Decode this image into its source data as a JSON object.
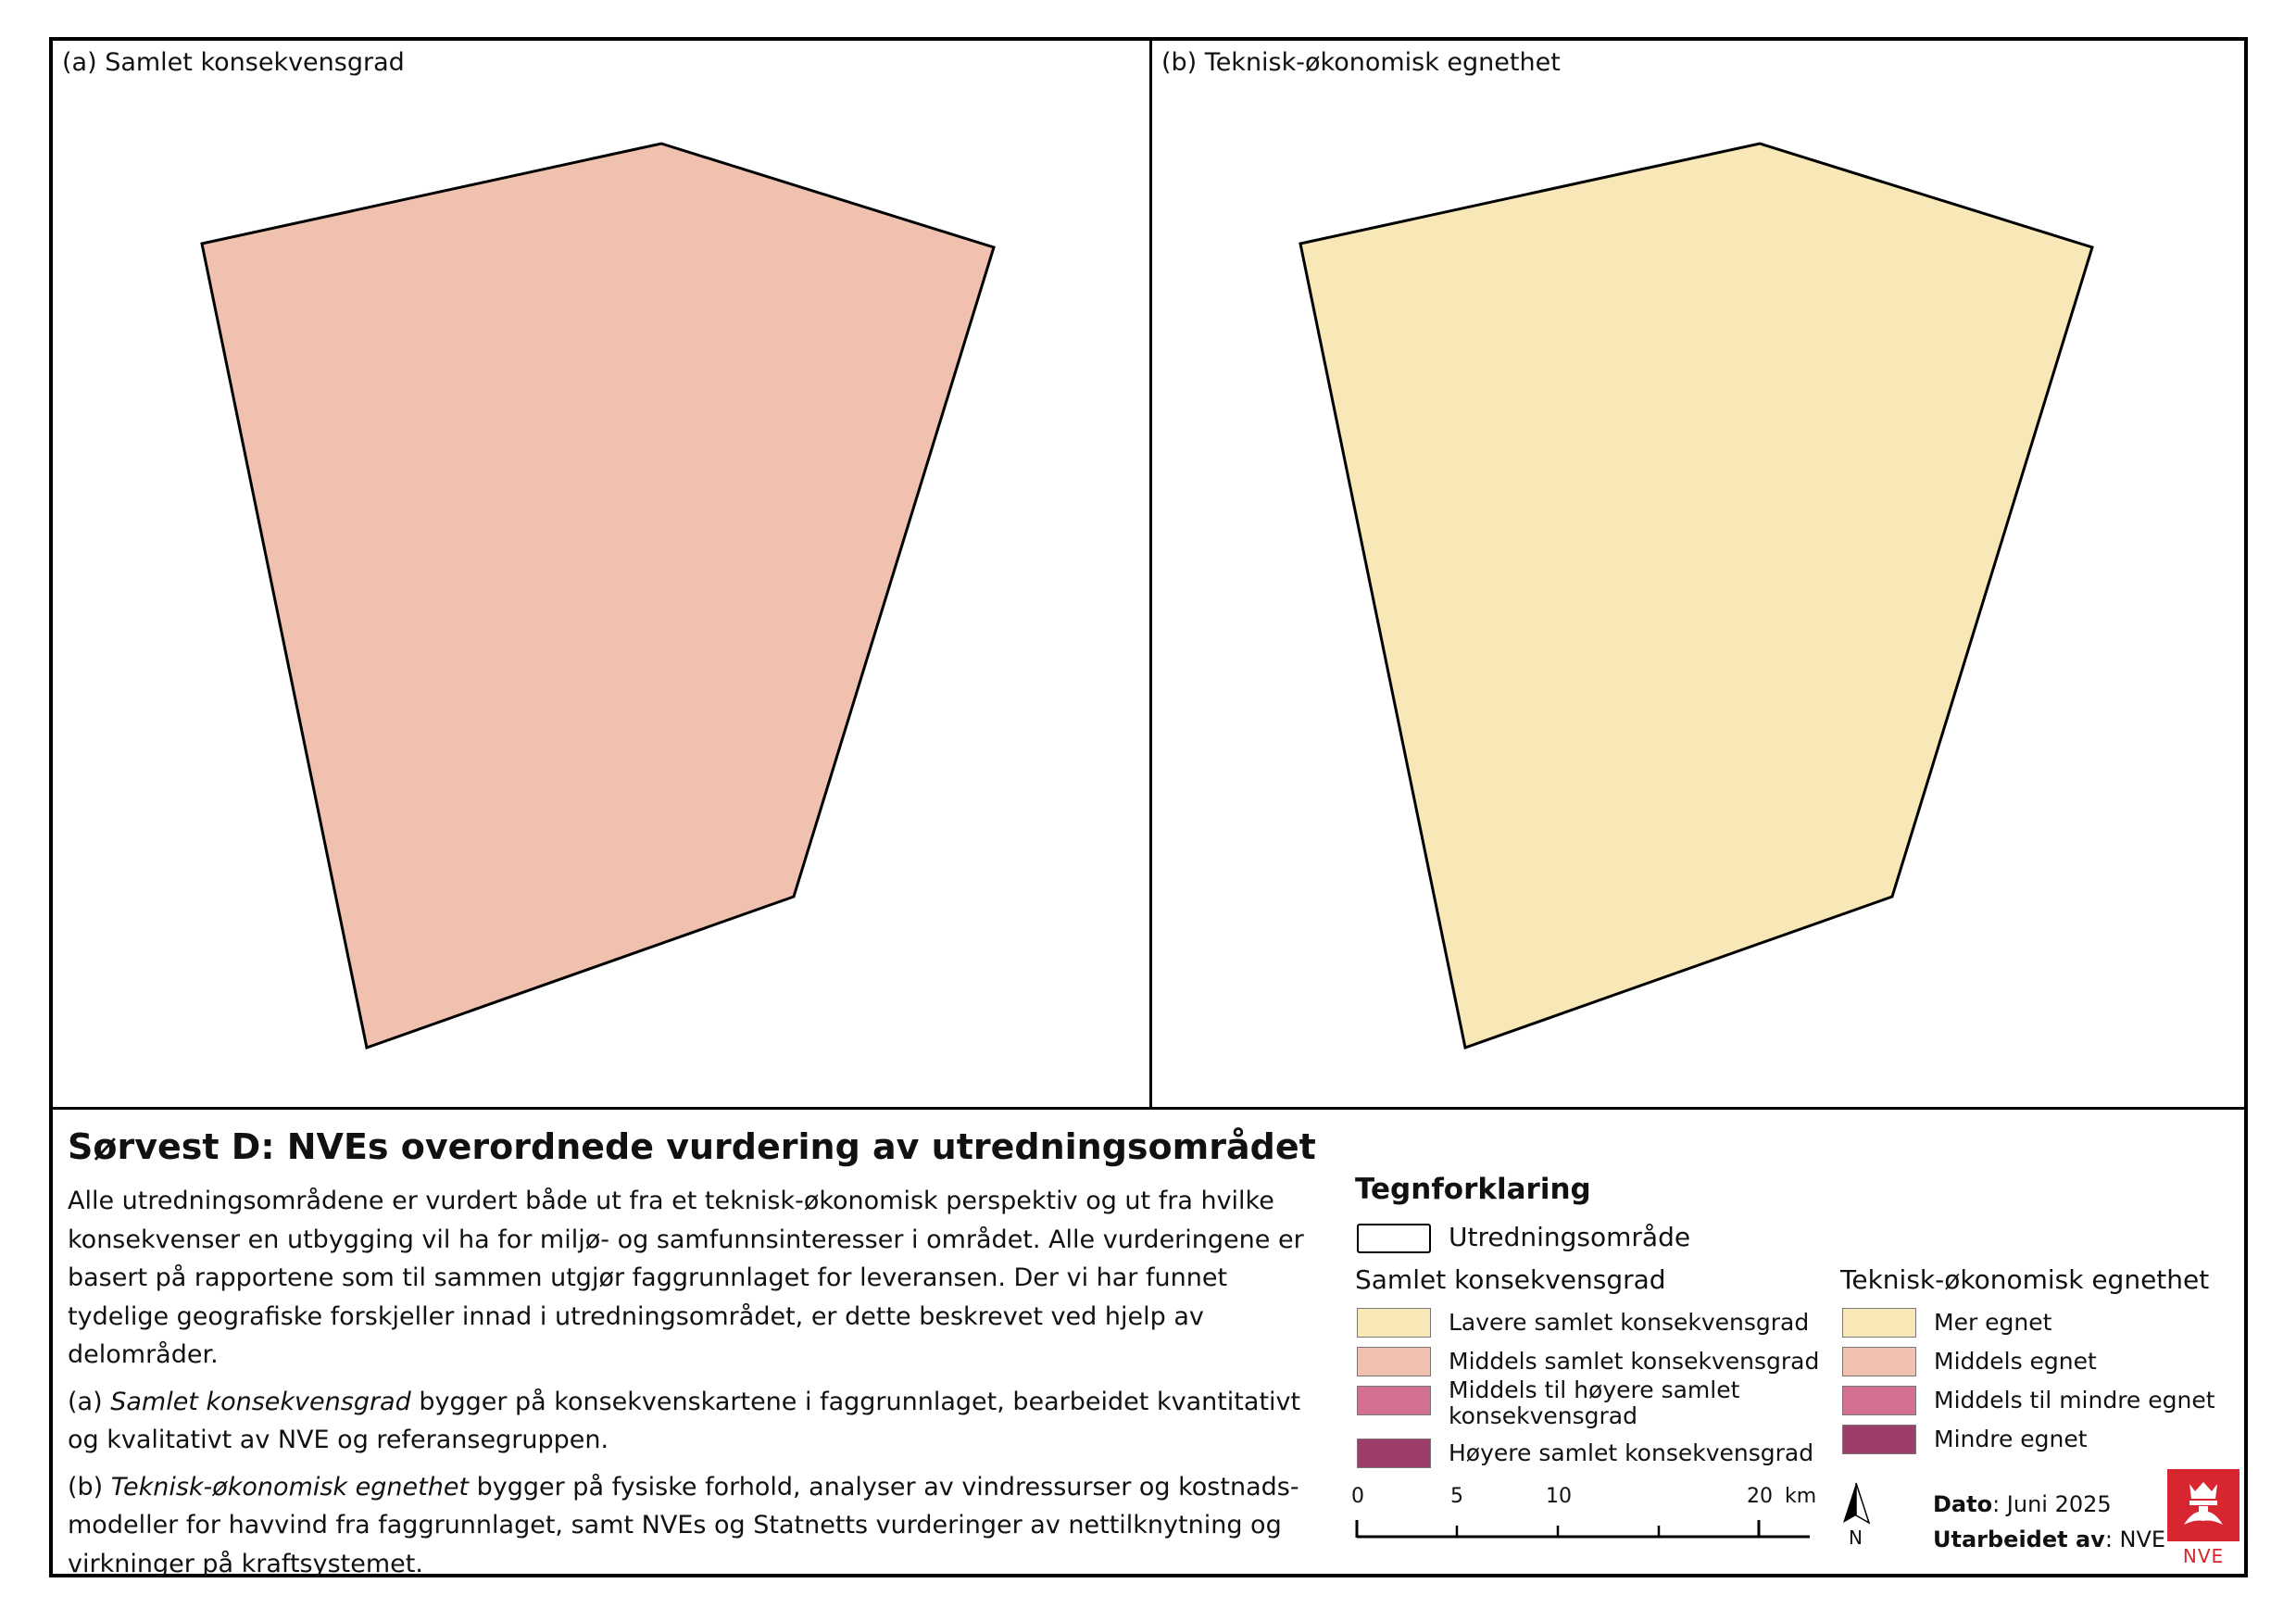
{
  "panel_a": {
    "label": "(a) Samlet konsekvensgrad",
    "fill": "#efc1ae"
  },
  "panel_b": {
    "label": "(b) Teknisk-økonomisk egnethet",
    "fill": "#f8e7b7"
  },
  "title": "Sørvest D: NVEs overordnede vurdering av utredningsområdet",
  "description": {
    "para1": "Alle utredningsområdene er vurdert både ut fra et teknisk-økonomisk perspektiv og ut fra hvilke konsekvenser en utbygging vil ha for miljø- og samfunnsinteresser i området. Alle vurderingene er basert på rapportene som til sammen utgjør faggrunnlaget for leveransen. Der vi har funnet tydelige geografiske forskjeller innad i utredningsområdet, er dette beskrevet ved hjelp av delområder.",
    "para2_term": "Samlet konsekvensgrad",
    "para2_prefix": "(a) ",
    "para2_rest": " bygger på konsekvenskartene i faggrunnlaget, bearbeidet kvantitativt og kvalitativt av NVE og referansegruppen.",
    "para3_prefix": "(b) ",
    "para3_term": "Teknisk-økonomisk egnethet",
    "para3_rest": " bygger på fysiske forhold, analyser av vindressurser og kostnads-modeller for havvind fra faggrunnlaget, samt NVEs og Statnetts vurderinger av nettilknytning og virkninger på kraftsystemet."
  },
  "legend": {
    "title": "Tegnforklaring",
    "outline_label": "Utredningsområde",
    "group_a_title": "Samlet konsekvensgrad",
    "group_b_title": "Teknisk-økonomisk egnethet",
    "group_a": [
      {
        "label": "Lavere samlet konsekvensgrad",
        "color": "#f8e7b7"
      },
      {
        "label": "Middels samlet konsekvensgrad",
        "color": "#efc1ae"
      },
      {
        "label": "Middels til høyere samlet konsekvensgrad",
        "color": "#d1708f"
      },
      {
        "label": "Høyere samlet konsekvensgrad",
        "color": "#9c3d6c"
      }
    ],
    "group_b": [
      {
        "label": "Mer egnet",
        "color": "#f8e7b7"
      },
      {
        "label": "Middels egnet",
        "color": "#efc1ae"
      },
      {
        "label": "Middels til mindre egnet",
        "color": "#d1708f"
      },
      {
        "label": "Mindre egnet",
        "color": "#9c3d6c"
      }
    ]
  },
  "scale": {
    "ticks": [
      "0",
      "5",
      "10",
      "20"
    ],
    "unit": "km"
  },
  "north_label": "N",
  "meta": {
    "date_label": "Dato",
    "date_value": ": Juni 2025",
    "author_label": "Utarbeidet av",
    "author_value": ": NVE"
  },
  "logo_text": "NVE"
}
